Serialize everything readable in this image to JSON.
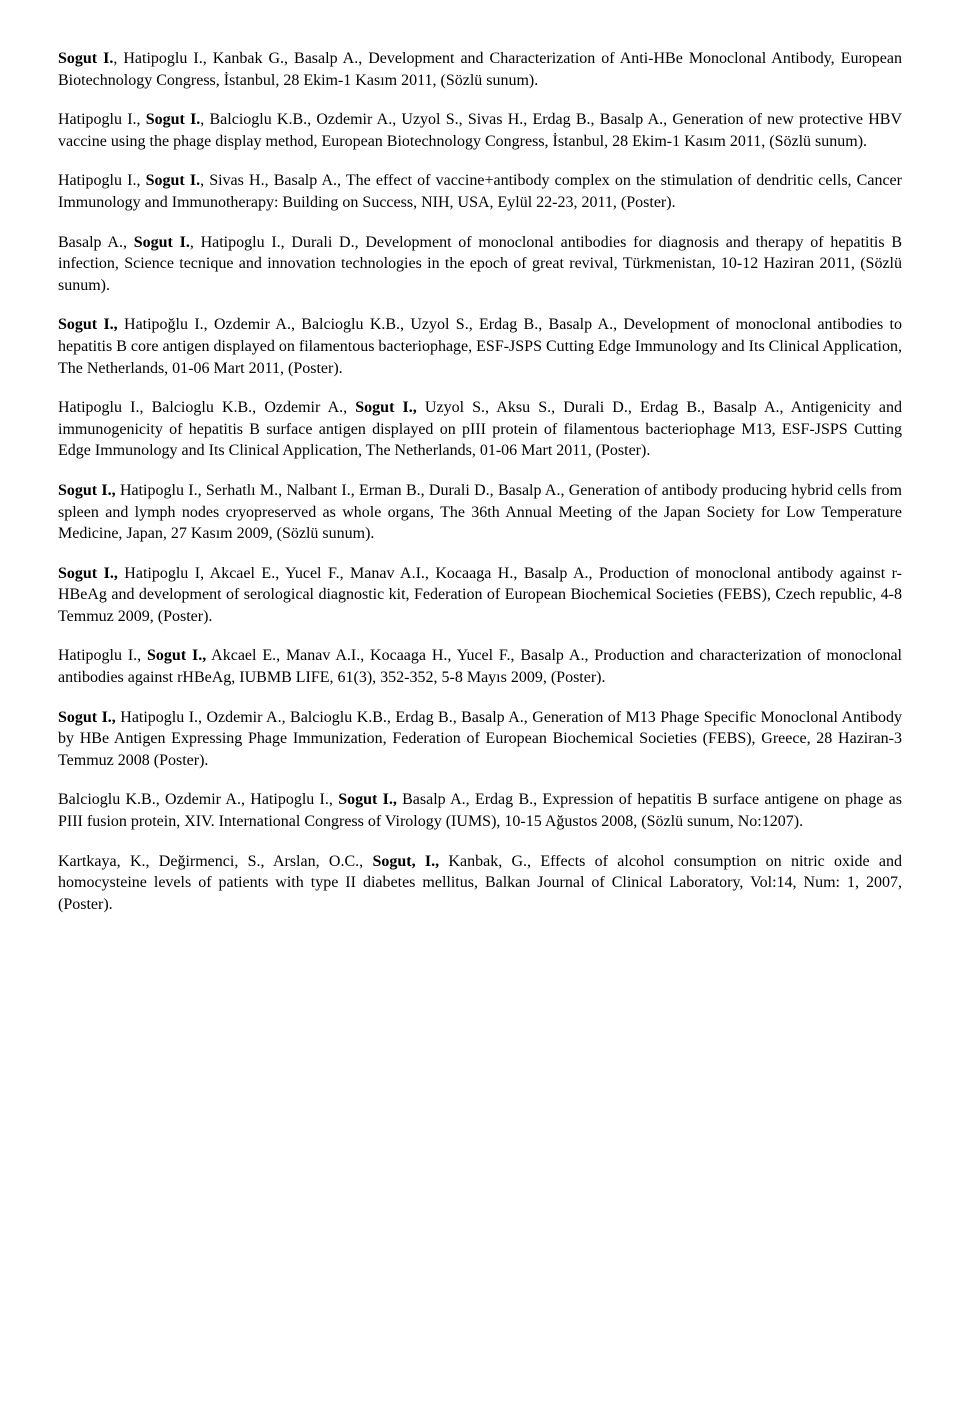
{
  "publications": [
    {
      "text": "<b>Sogut I.</b>, Hatipoglu I., Kanbak G., Basalp A., Development and Characterization of Anti-HBe Monoclonal Antibody, European Biotechnology Congress, İstanbul, 28 Ekim-1 Kasım 2011, (Sözlü sunum)."
    },
    {
      "text": "Hatipoglu I., <b>Sogut I.</b>, Balcioglu K.B., Ozdemir A., Uzyol S., Sivas H., Erdag B., Basalp A., Generation of new protective HBV vaccine using the phage display method, European Biotechnology Congress, İstanbul, 28 Ekim-1 Kasım 2011, (Sözlü sunum)."
    },
    {
      "text": "Hatipoglu I., <b>Sogut I.</b>, Sivas H., Basalp A., The effect of vaccine+antibody complex on the stimulation of dendritic cells, Cancer Immunology and Immunotherapy: Building on Success, NIH, USA, Eylül 22-23, 2011, (Poster)."
    },
    {
      "text": "Basalp A., <b>Sogut I.</b>, Hatipoglu I., Durali D., Development of monoclonal antibodies for diagnosis and therapy of hepatitis B infection, Science tecnique and innovation technologies in the epoch of great revival, Türkmenistan, 10-12 Haziran 2011, (Sözlü sunum)."
    },
    {
      "text": "<b>Sogut I.,</b> Hatipoğlu I., Ozdemir A., Balcioglu K.B., Uzyol S., Erdag B., Basalp A., Development of monoclonal antibodies to hepatitis B core antigen displayed on filamentous bacteriophage, ESF-JSPS Cutting Edge Immunology and Its Clinical Application, The Netherlands, 01-06 Mart 2011, (Poster)."
    },
    {
      "text": "Hatipoglu I., Balcioglu K.B., Ozdemir A., <b>Sogut I.,</b> Uzyol S., Aksu S., Durali D., Erdag B., Basalp A., Antigenicity and immunogenicity of hepatitis B surface antigen displayed on pIII protein of filamentous bacteriophage M13, ESF-JSPS Cutting Edge Immunology and Its Clinical Application, The Netherlands, 01-06 Mart 2011, (Poster)."
    },
    {
      "text": "<b>Sogut I.,</b> Hatipoglu I., Serhatlı M., Nalbant I., Erman B., Durali D., Basalp A., Generation of antibody producing hybrid cells from spleen and lymph nodes cryopreserved as whole organs, The 36th Annual Meeting of the Japan Society for Low Temperature Medicine, Japan, 27 Kasım 2009, (Sözlü sunum)."
    },
    {
      "text": "<b>Sogut I.,</b> Hatipoglu I, Akcael E., Yucel F., Manav A.I., Kocaaga H., Basalp A., Production of monoclonal antibody against r-HBeAg and development of serological diagnostic kit, Federation of European Biochemical Societies (FEBS), Czech republic, 4-8 Temmuz 2009, (Poster)."
    },
    {
      "text": "Hatipoglu I., <b>Sogut I.,</b> Akcael E., Manav A.I., Kocaaga H., Yucel F., Basalp A., Production and characterization of monoclonal antibodies against rHBeAg, IUBMB LIFE, 61(3), 352-352, 5-8 Mayıs 2009, (Poster)."
    },
    {
      "text": "<b>Sogut I.,</b> Hatipoglu I., Ozdemir A., Balcioglu K.B., Erdag B., Basalp A., Generation of M13 Phage Specific Monoclonal Antibody by HBe Antigen Expressing Phage Immunization, Federation of European Biochemical Societies (FEBS), Greece, 28 Haziran-3 Temmuz 2008 (Poster)."
    },
    {
      "text": "Balcioglu K.B., Ozdemir A., Hatipoglu I., <b>Sogut I.,</b> Basalp A., Erdag B., Expression of hepatitis B surface antigene on phage as PIII fusion protein, XIV. International Congress of Virology (IUMS), 10-15 Ağustos 2008, (Sözlü sunum, No:1207)."
    },
    {
      "text": "Kartkaya, K., Değirmenci, S., Arslan, O.C., <b>Sogut, I.,</b> Kanbak, G., Effects of alcohol consumption on nitric oxide and homocysteine levels of patients with type II diabetes mellitus, Balkan Journal of Clinical Laboratory, Vol:14, Num: 1, 2007, (Poster)."
    }
  ]
}
